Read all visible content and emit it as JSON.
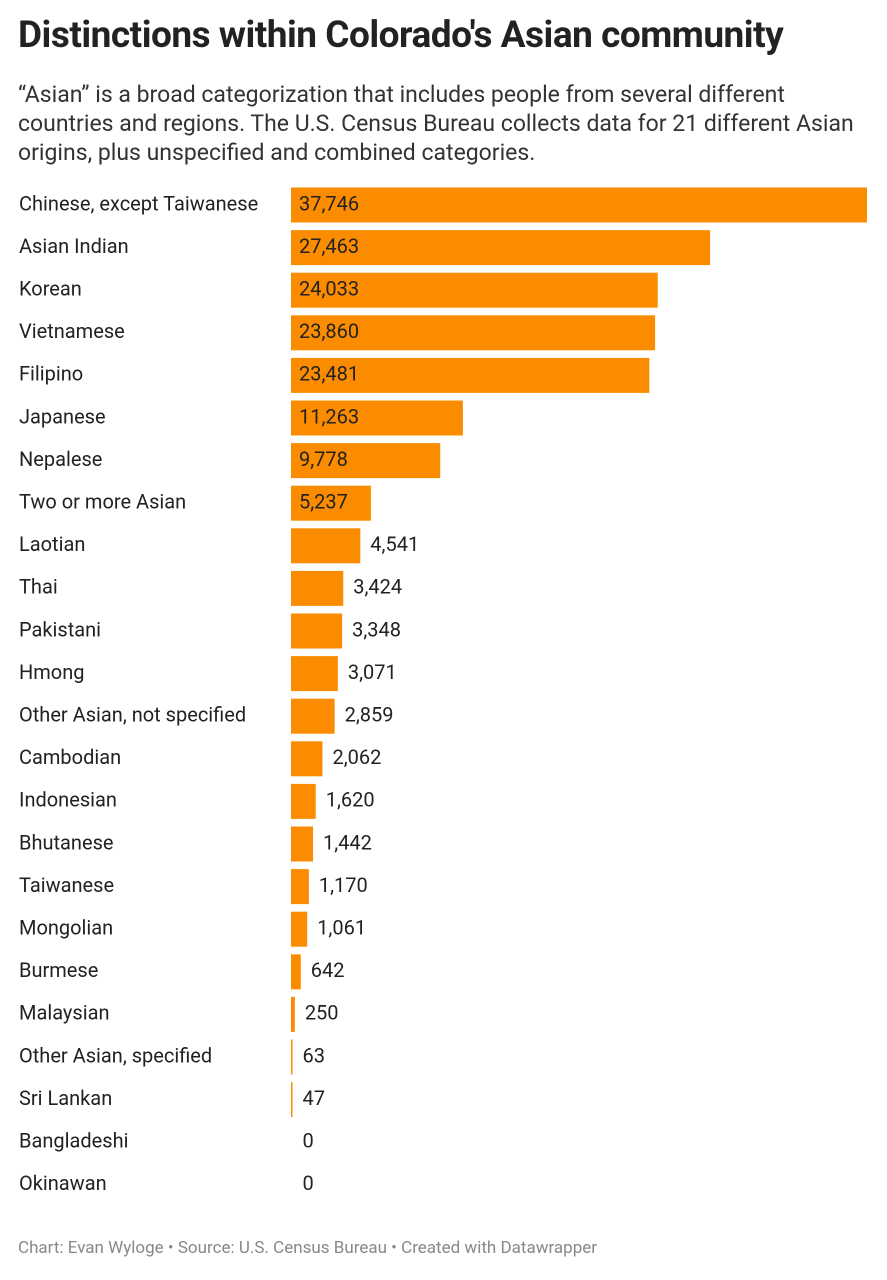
{
  "chart_data": {
    "type": "bar",
    "orientation": "horizontal",
    "title": "Distinctions within Colorado's Asian community",
    "subtitle": "“Asian” is a broad categorization that includes people from several different countries and regions. The U.S. Census Bureau collects data for 21 different Asian origins, plus unspecified and combined categories.",
    "footer": "Chart: Evan Wyloge • Source: U.S. Census Bureau • Created with Datawrapper",
    "color": "#fb8c00",
    "categories": [
      "Chinese, except Taiwanese",
      "Asian Indian",
      "Korean",
      "Vietnamese",
      "Filipino",
      "Japanese",
      "Nepalese",
      "Two or more Asian",
      "Laotian",
      "Thai",
      "Pakistani",
      "Hmong",
      "Other Asian, not specified",
      "Cambodian",
      "Indonesian",
      "Bhutanese",
      "Taiwanese",
      "Mongolian",
      "Burmese",
      "Malaysian",
      "Other Asian, specified",
      "Sri Lankan",
      "Bangladeshi",
      "Okinawan"
    ],
    "values": [
      37746,
      27463,
      24033,
      23860,
      23481,
      11263,
      9778,
      5237,
      4541,
      3424,
      3348,
      3071,
      2859,
      2062,
      1620,
      1442,
      1170,
      1061,
      642,
      250,
      63,
      47,
      0,
      0
    ],
    "value_labels": [
      "37,746",
      "27,463",
      "24,033",
      "23,860",
      "23,481",
      "11,263",
      "9,778",
      "5,237",
      "4,541",
      "3,424",
      "3,348",
      "3,071",
      "2,859",
      "2,062",
      "1,620",
      "1,442",
      "1,170",
      "1,061",
      "642",
      "250",
      "63",
      "47",
      "0",
      "0"
    ]
  }
}
